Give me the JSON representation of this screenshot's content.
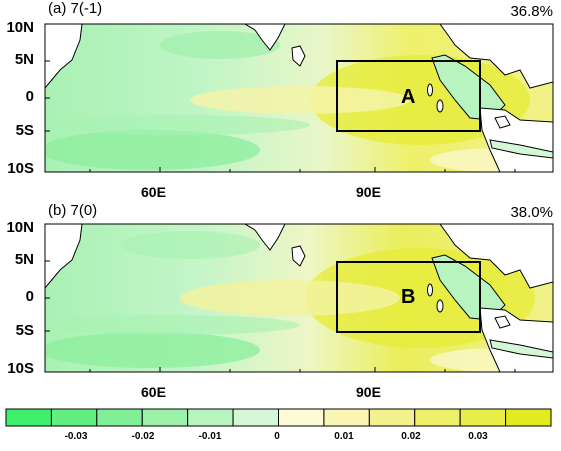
{
  "panels": [
    {
      "label": "(a) 7(-1)",
      "percent": "36.8%",
      "region_label": "A"
    },
    {
      "label": "(b) 7(0)",
      "percent": "38.0%",
      "region_label": "B"
    }
  ],
  "lat_ticks": [
    "10N",
    "5N",
    "0",
    "5S",
    "10S"
  ],
  "lon_ticks": [
    "60E",
    "90E"
  ],
  "colorbar": {
    "labels": [
      "-0.03",
      "-0.02",
      "-0.01",
      "0",
      "0.01",
      "0.02",
      "0.03"
    ],
    "colors": [
      "#3ff06a",
      "#62ef82",
      "#80ef96",
      "#9cf1aa",
      "#b8f4bf",
      "#d4f7d6",
      "#fdfbd6",
      "#f9f6b3",
      "#f3f18e",
      "#eef06b",
      "#e9ee48",
      "#e2ea20"
    ]
  },
  "colors": {
    "land": "#ffffff",
    "box": "#000000"
  }
}
